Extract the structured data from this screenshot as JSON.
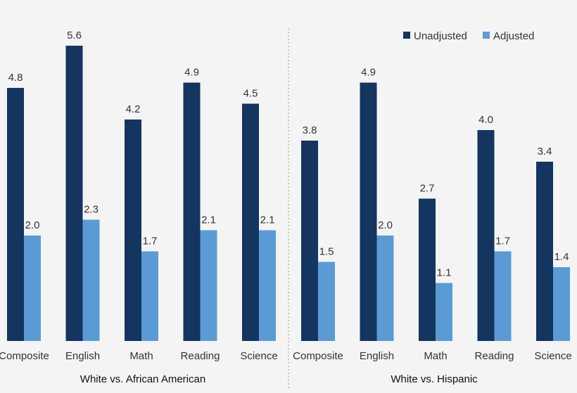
{
  "chart_data": {
    "type": "bar",
    "groups": [
      {
        "label": "White vs. African American",
        "categories": [
          "Composite",
          "English",
          "Math",
          "Reading",
          "Science"
        ],
        "series": [
          {
            "name": "Unadjusted",
            "values": [
              4.8,
              5.6,
              4.2,
              4.9,
              4.5
            ]
          },
          {
            "name": "Adjusted",
            "values": [
              2.0,
              2.3,
              1.7,
              2.1,
              2.1
            ]
          }
        ]
      },
      {
        "label": "White vs. Hispanic",
        "categories": [
          "Composite",
          "English",
          "Math",
          "Reading",
          "Science"
        ],
        "series": [
          {
            "name": "Unadjusted",
            "values": [
              3.8,
              4.9,
              2.7,
              4.0,
              3.4
            ]
          },
          {
            "name": "Adjusted",
            "values": [
              1.5,
              2.0,
              1.1,
              1.7,
              1.4
            ]
          }
        ]
      }
    ],
    "legend": [
      {
        "name": "Unadjusted",
        "color": "#14355f"
      },
      {
        "name": "Adjusted",
        "color": "#5b9bd5"
      }
    ],
    "legend_position": "top-right",
    "ylim": [
      0,
      6
    ],
    "grid": false,
    "value_format": "one-decimal"
  }
}
